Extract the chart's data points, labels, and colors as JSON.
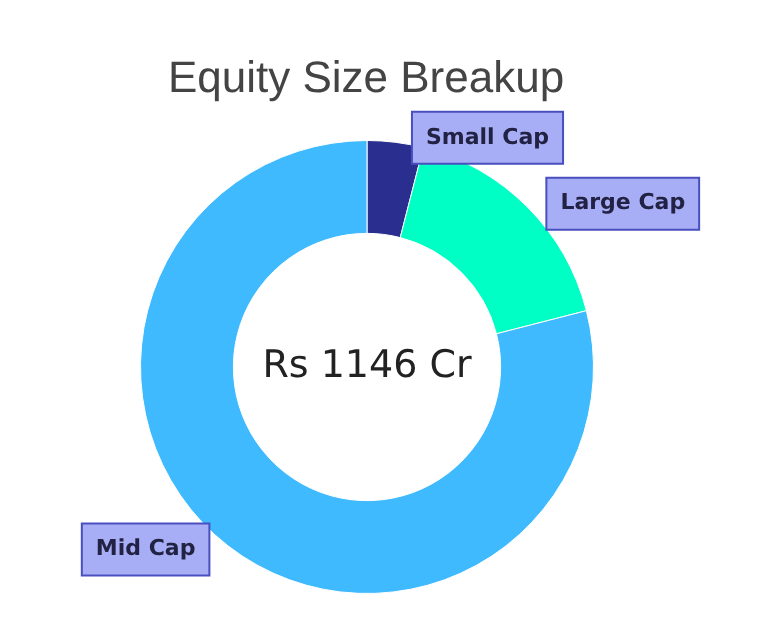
{
  "chart_data": {
    "type": "donut",
    "title": "Equity Size Breakup",
    "categories": [
      "Small Cap",
      "Large Cap",
      "Mid Cap"
    ],
    "values": [
      4,
      17,
      79
    ],
    "colors": [
      "#2a2e8f",
      "#00ffc4",
      "#3fbaff"
    ],
    "annotations": [
      "Rs 1146 Cr"
    ],
    "legend": false
  }
}
